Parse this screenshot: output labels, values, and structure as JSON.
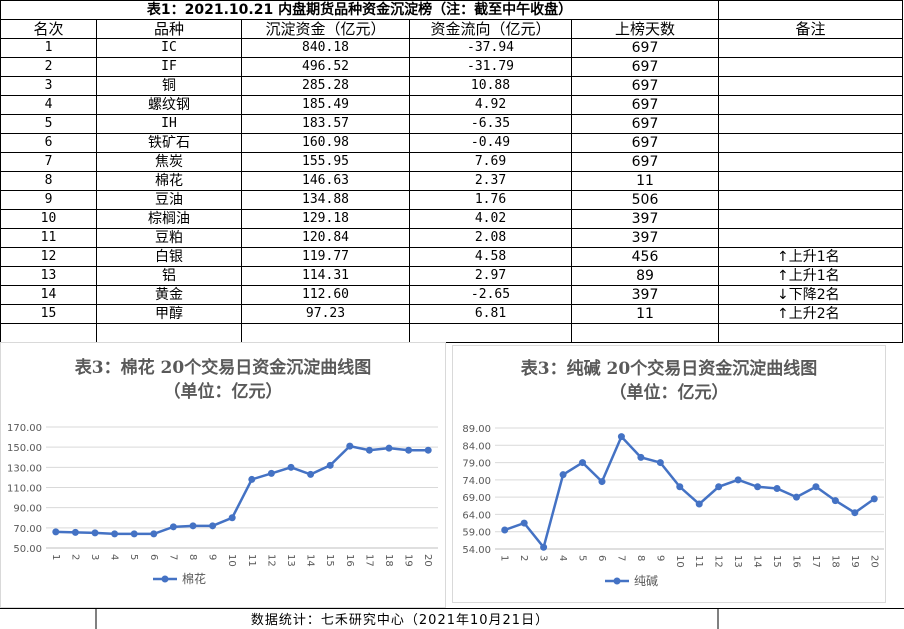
{
  "table": {
    "title": "表1：2021.10.21 内盘期货品种资金沉淀榜（注：截至中午收盘）",
    "headers": [
      "名次",
      "品种",
      "沉淀资金（亿元）",
      "资金流向（亿元）",
      "上榜天数",
      "备注"
    ],
    "rows": [
      {
        "rank": "1",
        "name": "IC",
        "capital": "840.18",
        "flow": "-37.94",
        "days": "697",
        "note": ""
      },
      {
        "rank": "2",
        "name": "IF",
        "capital": "496.52",
        "flow": "-31.79",
        "days": "697",
        "note": ""
      },
      {
        "rank": "3",
        "name": "铜",
        "capital": "285.28",
        "flow": "10.88",
        "days": "697",
        "note": ""
      },
      {
        "rank": "4",
        "name": "螺纹钢",
        "capital": "185.49",
        "flow": "4.92",
        "days": "697",
        "note": ""
      },
      {
        "rank": "5",
        "name": "IH",
        "capital": "183.57",
        "flow": "-6.35",
        "days": "697",
        "note": ""
      },
      {
        "rank": "6",
        "name": "铁矿石",
        "capital": "160.98",
        "flow": "-0.49",
        "days": "697",
        "note": ""
      },
      {
        "rank": "7",
        "name": "焦炭",
        "capital": "155.95",
        "flow": "7.69",
        "days": "697",
        "note": ""
      },
      {
        "rank": "8",
        "name": "棉花",
        "capital": "146.63",
        "flow": "2.37",
        "days": "11",
        "note": ""
      },
      {
        "rank": "9",
        "name": "豆油",
        "capital": "134.88",
        "flow": "1.76",
        "days": "506",
        "note": ""
      },
      {
        "rank": "10",
        "name": "棕榈油",
        "capital": "129.18",
        "flow": "4.02",
        "days": "397",
        "note": ""
      },
      {
        "rank": "11",
        "name": "豆粕",
        "capital": "120.84",
        "flow": "2.08",
        "days": "397",
        "note": ""
      },
      {
        "rank": "12",
        "name": "白银",
        "capital": "119.77",
        "flow": "4.58",
        "days": "456",
        "note": "↑上升1名"
      },
      {
        "rank": "13",
        "name": "铝",
        "capital": "114.31",
        "flow": "2.97",
        "days": "89",
        "note": "↑上升1名"
      },
      {
        "rank": "14",
        "name": "黄金",
        "capital": "112.60",
        "flow": "-2.65",
        "days": "397",
        "note": "↓下降2名"
      },
      {
        "rank": "15",
        "name": "甲醇",
        "capital": "97.23",
        "flow": "6.81",
        "days": "11",
        "note": "↑上升2名"
      }
    ]
  },
  "footer": "数据统计：七禾研究中心（2021年10月21日）",
  "colors": {
    "line": "#4472c4",
    "grid": "#d9d9d9",
    "axis_text": "#595959"
  },
  "chart_data": [
    {
      "type": "line",
      "title": "表3：棉花 20个交易日资金沉淀曲线图",
      "subtitle": "（单位：亿元）",
      "x": [
        "1",
        "2",
        "3",
        "4",
        "5",
        "6",
        "7",
        "8",
        "9",
        "10",
        "11",
        "12",
        "13",
        "14",
        "15",
        "16",
        "17",
        "18",
        "19",
        "20"
      ],
      "series": [
        {
          "name": "棉花",
          "values": [
            66,
            65.5,
            65,
            64,
            64,
            64,
            71,
            72,
            72,
            80,
            118,
            124,
            130,
            123,
            132,
            151,
            147,
            149,
            147,
            147
          ]
        }
      ],
      "yticks": [
        "50.00",
        "70.00",
        "90.00",
        "110.00",
        "130.00",
        "150.00",
        "170.00"
      ],
      "ylim": [
        50,
        170
      ],
      "grid": true,
      "legend": "bottom"
    },
    {
      "type": "line",
      "title": "表3：纯碱 20个交易日资金沉淀曲线图",
      "subtitle": "（单位：亿元）",
      "x": [
        "1",
        "2",
        "3",
        "4",
        "5",
        "6",
        "7",
        "8",
        "9",
        "10",
        "11",
        "12",
        "13",
        "14",
        "15",
        "16",
        "17",
        "18",
        "19",
        "20"
      ],
      "series": [
        {
          "name": "纯碱",
          "values": [
            59.5,
            61.5,
            54.5,
            75.5,
            79,
            73.5,
            86.5,
            80.5,
            79,
            72,
            67,
            72,
            74,
            72,
            71.5,
            69,
            72,
            68,
            64.5,
            68.5
          ]
        }
      ],
      "yticks": [
        "54.00",
        "59.00",
        "64.00",
        "69.00",
        "74.00",
        "79.00",
        "84.00",
        "89.00"
      ],
      "ylim": [
        54,
        89
      ],
      "grid": true,
      "legend": "bottom"
    }
  ]
}
